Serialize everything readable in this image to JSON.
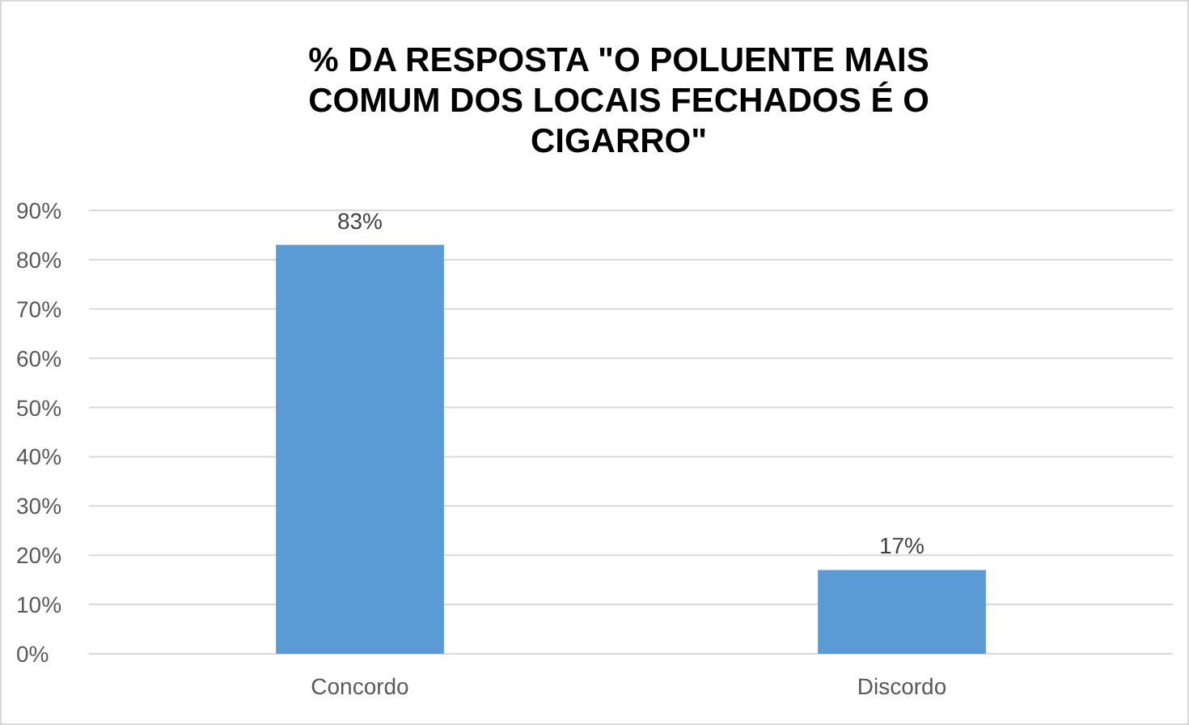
{
  "chart_data": {
    "type": "bar",
    "title": "% DA RESPOSTA \"O POLUENTE MAIS COMUM DOS LOCAIS FECHADOS É O CIGARRO\"",
    "categories": [
      "Concordo",
      "Discordo"
    ],
    "values": [
      83,
      17
    ],
    "value_labels": [
      "83%",
      "17%"
    ],
    "color": "#5b9bd5",
    "ylim": [
      0,
      90
    ],
    "yticks": [
      {
        "value": 0,
        "label": "0%"
      },
      {
        "value": 10,
        "label": "10%"
      },
      {
        "value": 20,
        "label": "20%"
      },
      {
        "value": 30,
        "label": "30%"
      },
      {
        "value": 40,
        "label": "40%"
      },
      {
        "value": 50,
        "label": "50%"
      },
      {
        "value": 60,
        "label": "60%"
      },
      {
        "value": 70,
        "label": "70%"
      },
      {
        "value": 80,
        "label": "80%"
      },
      {
        "value": 90,
        "label": "90%"
      }
    ],
    "grid": "y"
  }
}
